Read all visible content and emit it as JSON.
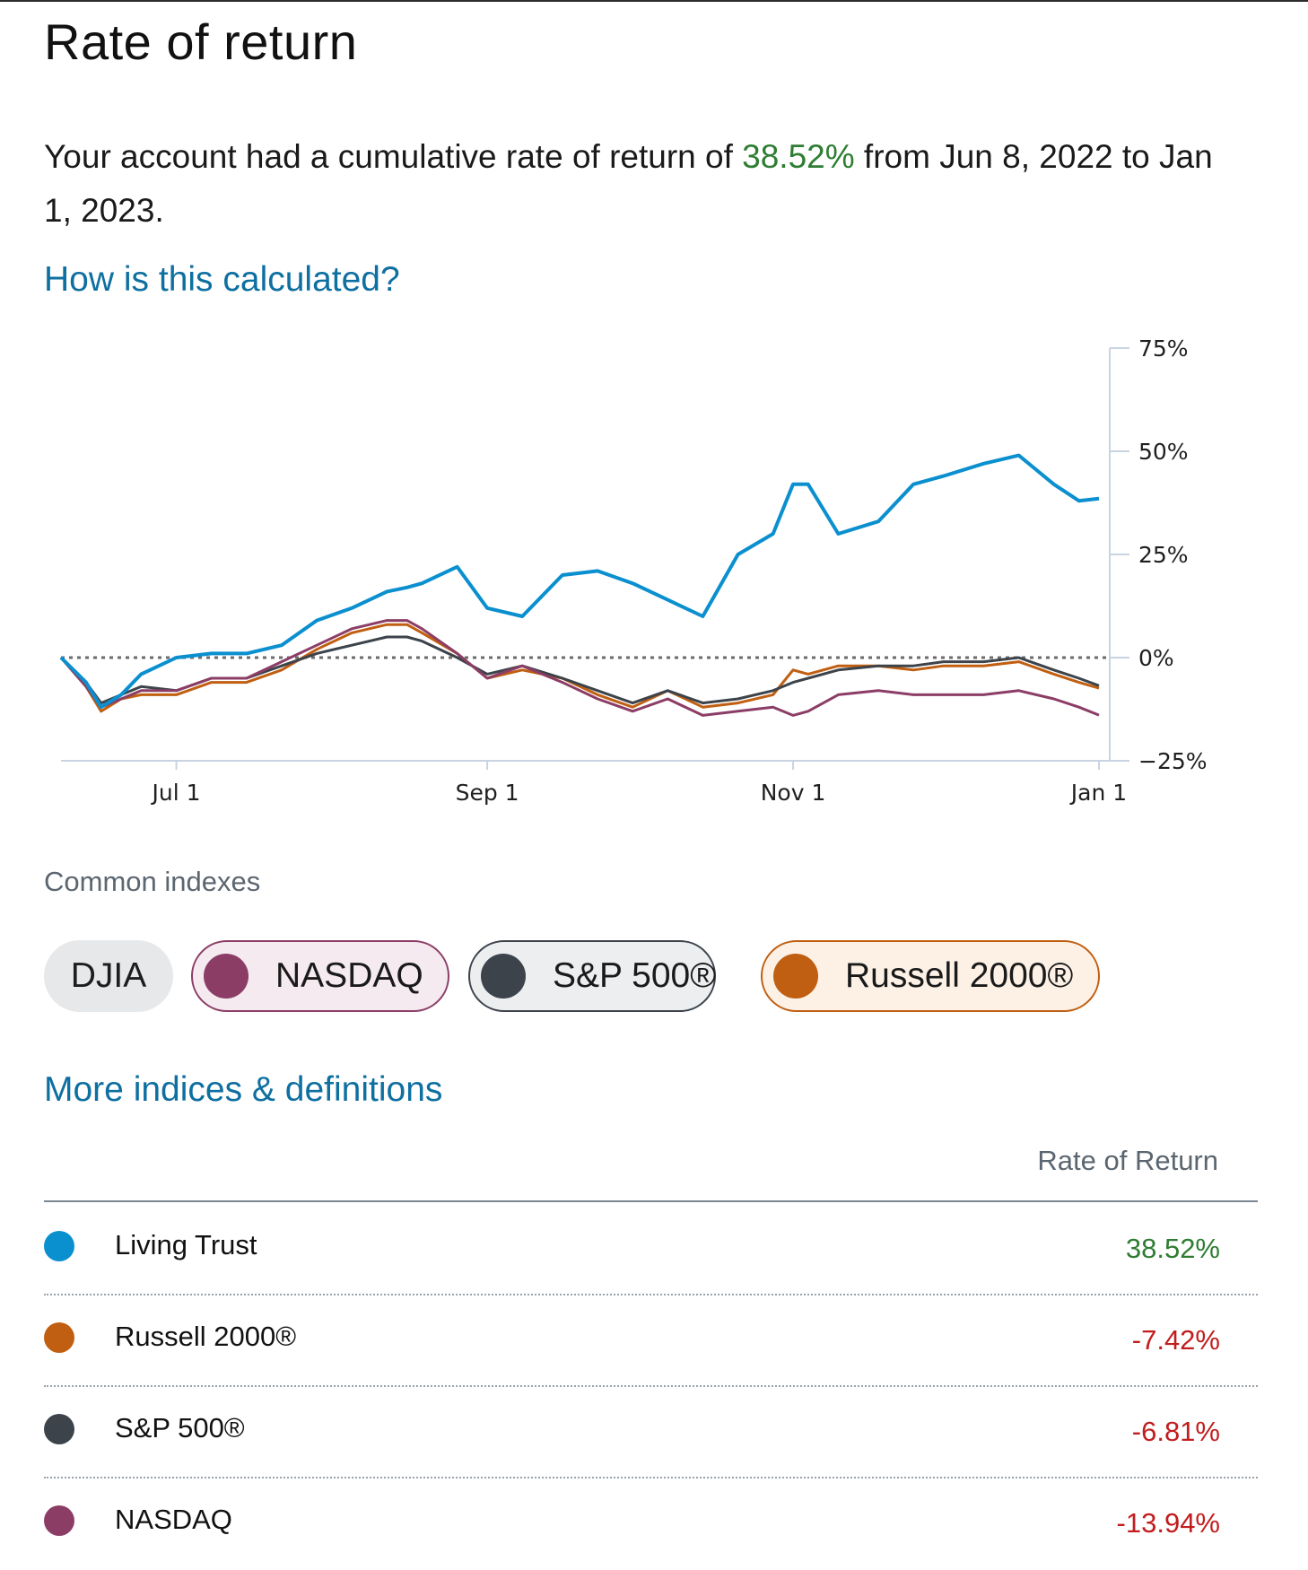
{
  "title": "Rate of return",
  "summary": {
    "prefix": "Your account had a cumulative rate of return of ",
    "pct": "38.52%",
    "suffix": " from Jun 8, 2022 to Jan 1, 2023."
  },
  "links": {
    "how_calculated": "How is this calculated?",
    "more_indices": "More indices & definitions"
  },
  "indexes": {
    "label": "Common indexes",
    "chips": [
      {
        "label": "DJIA",
        "selected": false
      },
      {
        "label": "NASDAQ",
        "selected": true,
        "color": "#8c3d66"
      },
      {
        "label": "S&P 500®",
        "selected": true,
        "color": "#3c434a"
      },
      {
        "label": "Russell 2000®",
        "selected": true,
        "color": "#c05f11"
      }
    ]
  },
  "table": {
    "column_header": "Rate of Return",
    "rows": [
      {
        "name": "Living Trust",
        "value": "38.52%",
        "color": "#0a8fcf"
      },
      {
        "name": "Russell 2000®",
        "value": "-7.42%",
        "color": "#c05f11"
      },
      {
        "name": "S&P 500®",
        "value": "-6.81%",
        "color": "#3c434a"
      },
      {
        "name": "NASDAQ",
        "value": "-13.94%",
        "color": "#8c3d66"
      }
    ]
  },
  "chart_data": {
    "type": "line",
    "x": [
      "2022-06-08",
      "2022-06-13",
      "2022-06-16",
      "2022-06-20",
      "2022-06-24",
      "2022-07-01",
      "2022-07-08",
      "2022-07-15",
      "2022-07-22",
      "2022-07-29",
      "2022-08-05",
      "2022-08-12",
      "2022-08-16",
      "2022-08-19",
      "2022-08-26",
      "2022-09-01",
      "2022-09-08",
      "2022-09-16",
      "2022-09-23",
      "2022-09-30",
      "2022-10-07",
      "2022-10-14",
      "2022-10-21",
      "2022-10-28",
      "2022-11-01",
      "2022-11-04",
      "2022-11-10",
      "2022-11-18",
      "2022-11-25",
      "2022-12-01",
      "2022-12-09",
      "2022-12-16",
      "2022-12-23",
      "2022-12-28",
      "2023-01-01"
    ],
    "series": [
      {
        "name": "Living Trust",
        "color": "#0a8fcf",
        "values": [
          0,
          -6,
          -12,
          -9,
          -4,
          0,
          1,
          1,
          3,
          9,
          12,
          16,
          17,
          18,
          22,
          12,
          10,
          20,
          21,
          18,
          14,
          10,
          25,
          30,
          42,
          42,
          30,
          33,
          42,
          44,
          47,
          49,
          42,
          38,
          38.52
        ]
      },
      {
        "name": "Russell 2000®",
        "color": "#c05f11",
        "values": [
          0,
          -7,
          -13,
          -10,
          -9,
          -9,
          -6,
          -6,
          -3,
          2,
          6,
          8,
          8,
          6,
          1,
          -5,
          -3,
          -5,
          -9,
          -12,
          -8,
          -12,
          -11,
          -9,
          -3,
          -4,
          -2,
          -2,
          -3,
          -2,
          -2,
          -1,
          -4,
          -6,
          -7.42
        ]
      },
      {
        "name": "S&P 500®",
        "color": "#3c434a",
        "values": [
          0,
          -6,
          -11,
          -9,
          -7,
          -8,
          -5,
          -5,
          -2,
          1,
          3,
          5,
          5,
          4,
          0,
          -4,
          -2,
          -5,
          -8,
          -11,
          -8,
          -11,
          -10,
          -8,
          -6,
          -5,
          -3,
          -2,
          -2,
          -1,
          -1,
          0,
          -3,
          -5,
          -6.81
        ]
      },
      {
        "name": "NASDAQ",
        "color": "#8c3d66",
        "values": [
          0,
          -7,
          -12,
          -10,
          -8,
          -8,
          -5,
          -5,
          -1,
          3,
          7,
          9,
          9,
          7,
          1,
          -5,
          -2,
          -6,
          -10,
          -13,
          -10,
          -14,
          -13,
          -12,
          -14,
          -13,
          -9,
          -8,
          -9,
          -9,
          -9,
          -8,
          -10,
          -12,
          -13.94
        ]
      }
    ],
    "x_ticks": [
      "Jul 1",
      "Sep 1",
      "Nov 1",
      "Jan 1"
    ],
    "x_tick_dates": [
      "2022-07-01",
      "2022-09-01",
      "2022-11-01",
      "2023-01-01"
    ],
    "y_ticks": [
      "75%",
      "50%",
      "25%",
      "0%",
      "−25%"
    ],
    "y_tick_values": [
      75,
      50,
      25,
      0,
      -25
    ],
    "ylim": [
      -25,
      75
    ],
    "xlim": [
      "2022-06-08",
      "2023-01-01"
    ],
    "baseline": 0,
    "y_axis_side": "right",
    "grid": false
  }
}
